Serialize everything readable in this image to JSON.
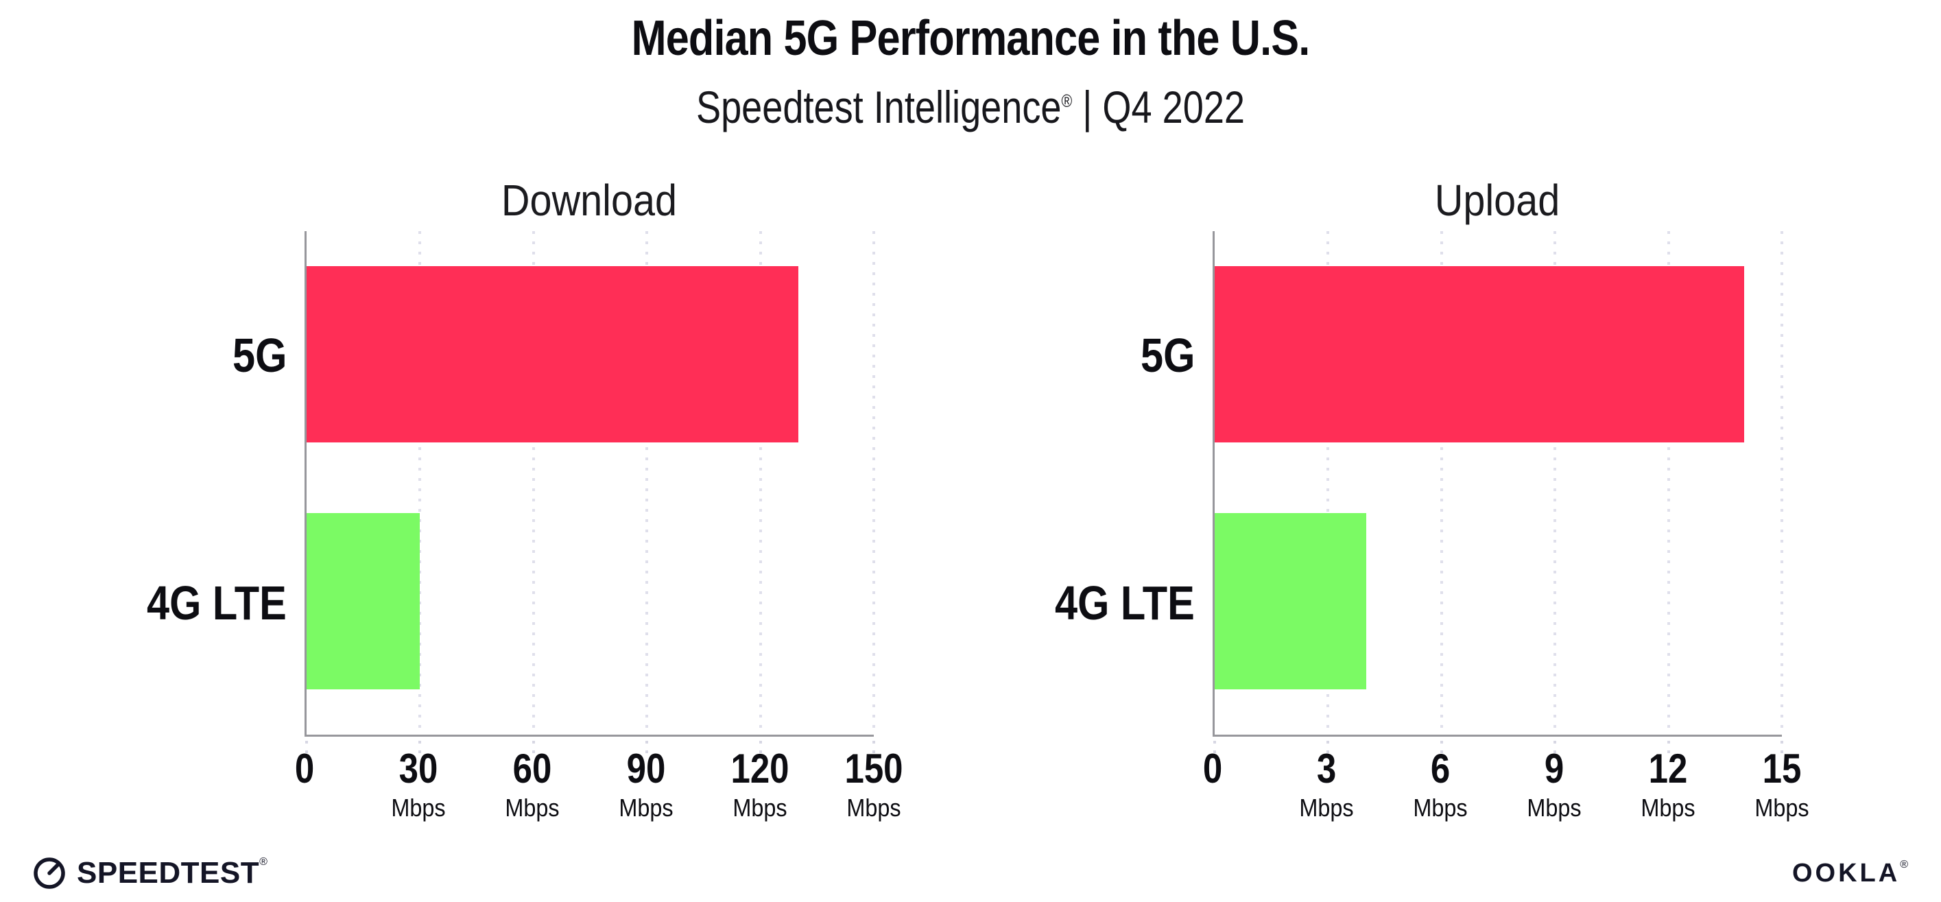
{
  "header": {
    "title": "Median 5G Performance in the U.S.",
    "subtitle": {
      "brand": "Speedtest Intelligence",
      "reg": "®",
      "rest": " | Q4 2022"
    }
  },
  "chart_data": [
    {
      "type": "bar",
      "orientation": "horizontal",
      "title": "Download",
      "categories": [
        "5G",
        "4G LTE"
      ],
      "values": [
        130,
        30
      ],
      "unit": "Mbps",
      "xlim": [
        0,
        150
      ],
      "xticks": [
        0,
        30,
        60,
        90,
        120,
        150
      ],
      "bar_colors": [
        "#FF2E56",
        "#7BFA64"
      ],
      "grid": "dotted-vertical",
      "legend": false
    },
    {
      "type": "bar",
      "orientation": "horizontal",
      "title": "Upload",
      "categories": [
        "5G",
        "4G LTE"
      ],
      "values": [
        14,
        4
      ],
      "unit": "Mbps",
      "xlim": [
        0,
        15
      ],
      "xticks": [
        0,
        3,
        6,
        9,
        12,
        15
      ],
      "bar_colors": [
        "#FF2E56",
        "#7BFA64"
      ],
      "grid": "dotted-vertical",
      "legend": false
    }
  ],
  "footer": {
    "speedtest_label": "SPEEDTEST",
    "speedtest_reg": "®",
    "speedtest_icon": "speedtest-gauge-icon",
    "ookla_label": "OOKLA",
    "ookla_reg": "®"
  },
  "colors": {
    "bar_5g": "#FF2E56",
    "bar_4g_lte": "#7BFA64",
    "axis": "#97979c",
    "gridline_dots": "#dfdfeb",
    "text": "#0d0d12",
    "logo": "#141526",
    "background": "#ffffff"
  }
}
